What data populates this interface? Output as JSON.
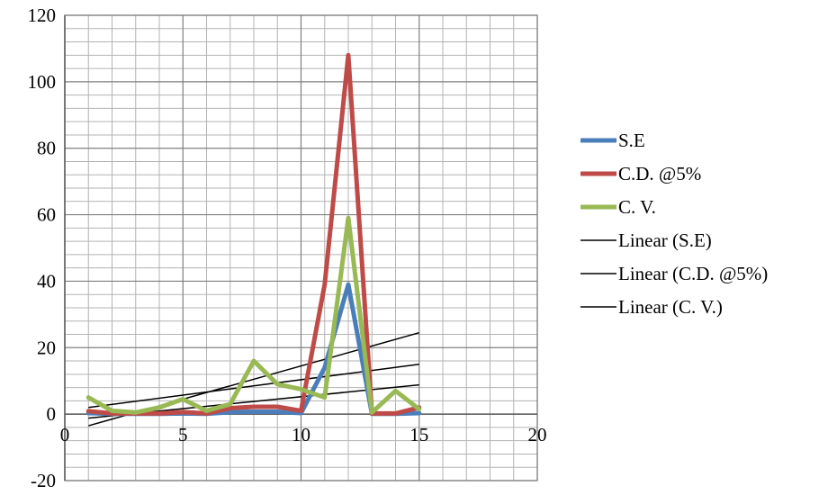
{
  "chart_data": {
    "type": "line",
    "title": "",
    "xlabel": "",
    "ylabel": "",
    "xlim": [
      0,
      20
    ],
    "ylim": [
      -20,
      120
    ],
    "x_ticks": [
      0,
      5,
      10,
      15,
      20
    ],
    "y_ticks": [
      -20,
      0,
      20,
      40,
      60,
      80,
      100,
      120
    ],
    "x_tick_labels": [
      "0",
      "5",
      "10",
      "15",
      "20"
    ],
    "y_tick_labels": [
      "-20",
      "0",
      "20",
      "40",
      "60",
      "80",
      "100",
      "120"
    ],
    "grid": "major and minor",
    "legend_position": "right",
    "x": [
      1,
      2,
      3,
      4,
      5,
      6,
      7,
      8,
      9,
      10,
      11,
      12,
      13,
      14,
      15
    ],
    "series": [
      {
        "name": "S.E",
        "color": "#4a7ebb",
        "values": [
          0.3,
          0.1,
          0.1,
          0.1,
          0.2,
          0.1,
          0.6,
          0.7,
          0.7,
          0.3,
          14,
          39,
          0.1,
          0.1,
          0.3
        ]
      },
      {
        "name": "C.D. @5%",
        "color": "#be4b48",
        "values": [
          0.9,
          0.2,
          0.2,
          0.2,
          0.6,
          0.2,
          1.8,
          2.2,
          2.2,
          1,
          39,
          108,
          0.2,
          0.2,
          2
        ]
      },
      {
        "name": "C. V.",
        "color": "#98b954",
        "values": [
          5,
          1,
          0.5,
          2,
          4.5,
          1,
          3,
          16,
          9,
          7.5,
          5,
          59,
          0.5,
          7,
          1.5
        ]
      }
    ],
    "trendlines": [
      {
        "name": "Linear (S.E)",
        "color": "#000000",
        "y_at_x1": -1.2,
        "y_at_x15": 8.8
      },
      {
        "name": "Linear (C.D. @5%)",
        "color": "#000000",
        "y_at_x1": -3.5,
        "y_at_x15": 24.5
      },
      {
        "name": "Linear (C. V.)",
        "color": "#000000",
        "y_at_x1": 2,
        "y_at_x15": 15
      }
    ]
  }
}
